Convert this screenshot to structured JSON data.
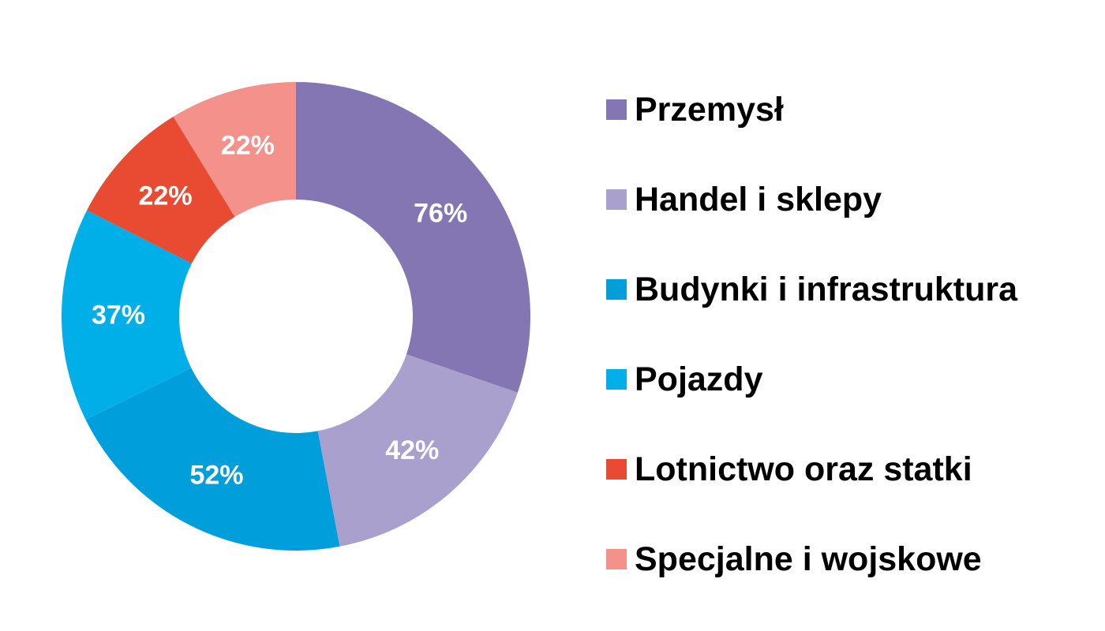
{
  "chart_data": {
    "type": "pie",
    "variant": "donut",
    "title": "",
    "legend_position": "right",
    "series": [
      {
        "name": "Przemysł",
        "value": 76,
        "label": "76%",
        "color": "#8476b2"
      },
      {
        "name": "Handel i sklepy",
        "value": 42,
        "label": "42%",
        "color": "#aaa0cd"
      },
      {
        "name": "Budynki i infrastruktura",
        "value": 52,
        "label": "52%",
        "color": "#009fdb"
      },
      {
        "name": "Pojazdy",
        "value": 37,
        "label": "37%",
        "color": "#00afe7"
      },
      {
        "name": "Lotnictwo oraz statki",
        "value": 22,
        "label": "22%",
        "color": "#e84b31"
      },
      {
        "name": "Specjalne i wojskowe",
        "value": 22,
        "label": "22%",
        "color": "#f3918a"
      }
    ]
  }
}
